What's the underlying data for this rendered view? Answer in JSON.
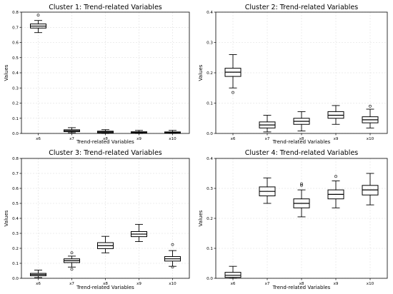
{
  "chart_data": [
    {
      "type": "box",
      "title": "Cluster 1: Trend-related Variables",
      "xlabel": "Trend-related Variables",
      "ylabel": "Values",
      "ylim": [
        0,
        0.8
      ],
      "yticks": [
        "0.0",
        "0.1",
        "0.2",
        "0.3",
        "0.4",
        "0.5",
        "0.6",
        "0.7",
        "0.8"
      ],
      "grid": true,
      "categories": [
        "x6",
        "x7",
        "x8",
        "x9",
        "x10"
      ],
      "boxes": [
        {
          "whislo": 0.665,
          "q1": 0.695,
          "med": 0.708,
          "q3": 0.722,
          "whishi": 0.745,
          "fliers": [
            0.78
          ]
        },
        {
          "whislo": 0.005,
          "q1": 0.012,
          "med": 0.018,
          "q3": 0.024,
          "whishi": 0.038,
          "fliers": []
        },
        {
          "whislo": 0.0,
          "q1": 0.004,
          "med": 0.01,
          "q3": 0.015,
          "whishi": 0.025,
          "fliers": []
        },
        {
          "whislo": 0.0,
          "q1": 0.003,
          "med": 0.007,
          "q3": 0.011,
          "whishi": 0.02,
          "fliers": []
        },
        {
          "whislo": 0.0,
          "q1": 0.002,
          "med": 0.006,
          "q3": 0.01,
          "whishi": 0.02,
          "fliers": []
        }
      ]
    },
    {
      "type": "box",
      "title": "Cluster 2: Trend-related Variables",
      "xlabel": "Trend-related Variables",
      "ylabel": "Values",
      "ylim": [
        0,
        0.4
      ],
      "yticks": [
        "0.0",
        "0.1",
        "0.2",
        "0.3",
        "0.4"
      ],
      "grid": true,
      "categories": [
        "x6",
        "x7",
        "x8",
        "x9",
        "x10"
      ],
      "boxes": [
        {
          "whislo": 0.15,
          "q1": 0.188,
          "med": 0.202,
          "q3": 0.215,
          "whishi": 0.26,
          "fliers": [
            0.135
          ]
        },
        {
          "whislo": 0.005,
          "q1": 0.018,
          "med": 0.028,
          "q3": 0.038,
          "whishi": 0.06,
          "fliers": []
        },
        {
          "whislo": 0.008,
          "q1": 0.03,
          "med": 0.04,
          "q3": 0.05,
          "whishi": 0.072,
          "fliers": []
        },
        {
          "whislo": 0.03,
          "q1": 0.05,
          "med": 0.06,
          "q3": 0.072,
          "whishi": 0.092,
          "fliers": []
        },
        {
          "whislo": 0.018,
          "q1": 0.035,
          "med": 0.045,
          "q3": 0.055,
          "whishi": 0.08,
          "fliers": [
            0.09
          ]
        }
      ]
    },
    {
      "type": "box",
      "title": "Cluster 3: Trend-related Variables",
      "xlabel": "Trend-related Variables",
      "ylabel": "Values",
      "ylim": [
        0,
        0.8
      ],
      "yticks": [
        "0.0",
        "0.1",
        "0.2",
        "0.3",
        "0.4",
        "0.5",
        "0.6",
        "0.7",
        "0.8"
      ],
      "grid": true,
      "categories": [
        "x6",
        "x7",
        "x8",
        "x9",
        "x10"
      ],
      "boxes": [
        {
          "whislo": 0.005,
          "q1": 0.017,
          "med": 0.025,
          "q3": 0.033,
          "whishi": 0.055,
          "fliers": []
        },
        {
          "whislo": 0.075,
          "q1": 0.105,
          "med": 0.118,
          "q3": 0.13,
          "whishi": 0.148,
          "fliers": [
            0.17,
            0.06
          ]
        },
        {
          "whislo": 0.17,
          "q1": 0.198,
          "med": 0.218,
          "q3": 0.238,
          "whishi": 0.28,
          "fliers": []
        },
        {
          "whislo": 0.245,
          "q1": 0.278,
          "med": 0.295,
          "q3": 0.312,
          "whishi": 0.36,
          "fliers": []
        },
        {
          "whislo": 0.08,
          "q1": 0.115,
          "med": 0.13,
          "q3": 0.145,
          "whishi": 0.185,
          "fliers": [
            0.225,
            0.075
          ]
        }
      ]
    },
    {
      "type": "box",
      "title": "Cluster 4: Trend-related Variables",
      "xlabel": "Trend-related Variables",
      "ylabel": "Values",
      "ylim": [
        0,
        0.4
      ],
      "yticks": [
        "0.0",
        "0.1",
        "0.2",
        "0.3",
        "0.4"
      ],
      "grid": true,
      "categories": [
        "x6",
        "x7",
        "x8",
        "x9",
        "x10"
      ],
      "boxes": [
        {
          "whislo": 0.0,
          "q1": 0.003,
          "med": 0.01,
          "q3": 0.02,
          "whishi": 0.04,
          "fliers": []
        },
        {
          "whislo": 0.25,
          "q1": 0.275,
          "med": 0.29,
          "q3": 0.305,
          "whishi": 0.335,
          "fliers": []
        },
        {
          "whislo": 0.205,
          "q1": 0.235,
          "med": 0.25,
          "q3": 0.265,
          "whishi": 0.295,
          "fliers": [
            0.31,
            0.315
          ]
        },
        {
          "whislo": 0.235,
          "q1": 0.265,
          "med": 0.28,
          "q3": 0.295,
          "whishi": 0.325,
          "fliers": [
            0.34
          ]
        },
        {
          "whislo": 0.245,
          "q1": 0.278,
          "med": 0.295,
          "q3": 0.31,
          "whishi": 0.35,
          "fliers": []
        }
      ]
    }
  ]
}
